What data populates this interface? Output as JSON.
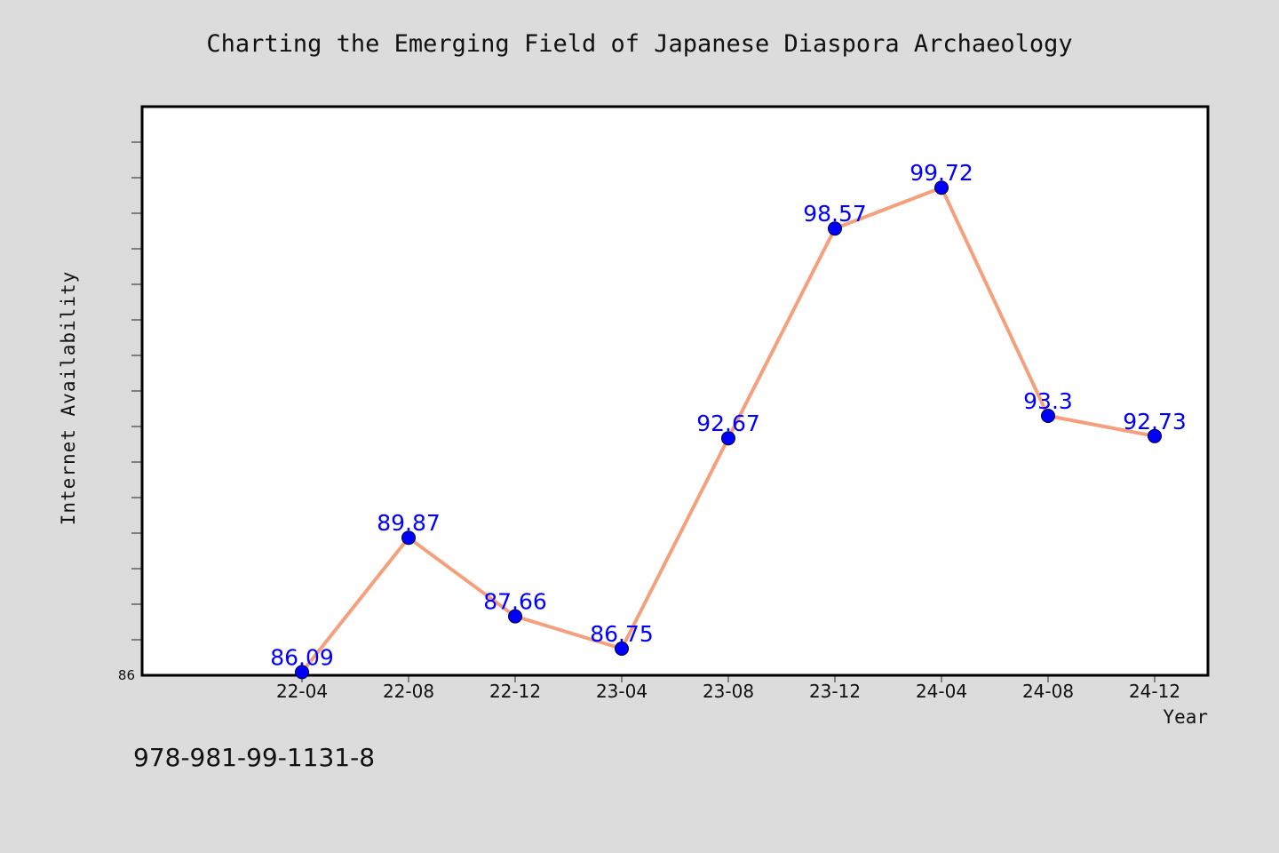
{
  "chart_data": {
    "type": "line",
    "title": "Charting the Emerging Field of Japanese Diaspora Archaeology",
    "xlabel": "Year",
    "ylabel": "Internet Availability",
    "categories": [
      "22-04",
      "22-08",
      "22-12",
      "23-04",
      "23-08",
      "23-12",
      "24-04",
      "24-08",
      "24-12"
    ],
    "values": [
      86.09,
      89.87,
      87.66,
      86.75,
      92.67,
      98.57,
      99.72,
      93.3,
      92.73
    ],
    "data_labels": [
      "86.09",
      "89.87",
      "87.66",
      "86.75",
      "92.67",
      "98.57",
      "99.72",
      "93.3",
      "92.73"
    ],
    "ylim": [
      86,
      102
    ],
    "y_tick_labels_shown": [
      "86"
    ],
    "grid": false,
    "line_color": "#f4a07c",
    "marker_color": "#0000ff",
    "label_color": "#0000ff"
  },
  "footer": {
    "isbn": "978-981-99-1131-8"
  }
}
